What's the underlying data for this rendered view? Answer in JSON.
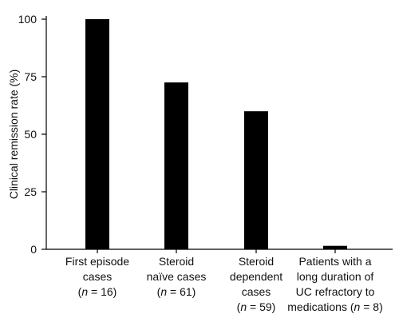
{
  "chart_data": {
    "type": "bar",
    "title": "",
    "xlabel": "",
    "ylabel": "Clinical remission rate (%)",
    "ylim": [
      0,
      100
    ],
    "yticks": [
      0,
      25,
      50,
      75,
      100
    ],
    "grid": false,
    "bar_color": "#000000",
    "categories": [
      {
        "lines": [
          {
            "text": "First episode"
          },
          {
            "text": "cases"
          }
        ],
        "n_label": "n",
        "n_value": " = 16)"
      },
      {
        "lines": [
          {
            "text": "Steroid"
          },
          {
            "text": "naïve cases"
          }
        ],
        "n_label": "n",
        "n_value": " = 61)"
      },
      {
        "lines": [
          {
            "text": "Steroid"
          },
          {
            "text": "dependent"
          },
          {
            "text": "cases"
          }
        ],
        "n_label": "n",
        "n_value": " = 59)"
      },
      {
        "lines": [
          {
            "text": "Patients with a"
          },
          {
            "text": "long duration of"
          },
          {
            "text": "UC refractory to"
          }
        ],
        "prefix": "medications (",
        "n_label": "n",
        "n_value": " = 8)"
      }
    ],
    "values": [
      100,
      72.5,
      60,
      1.5
    ]
  }
}
